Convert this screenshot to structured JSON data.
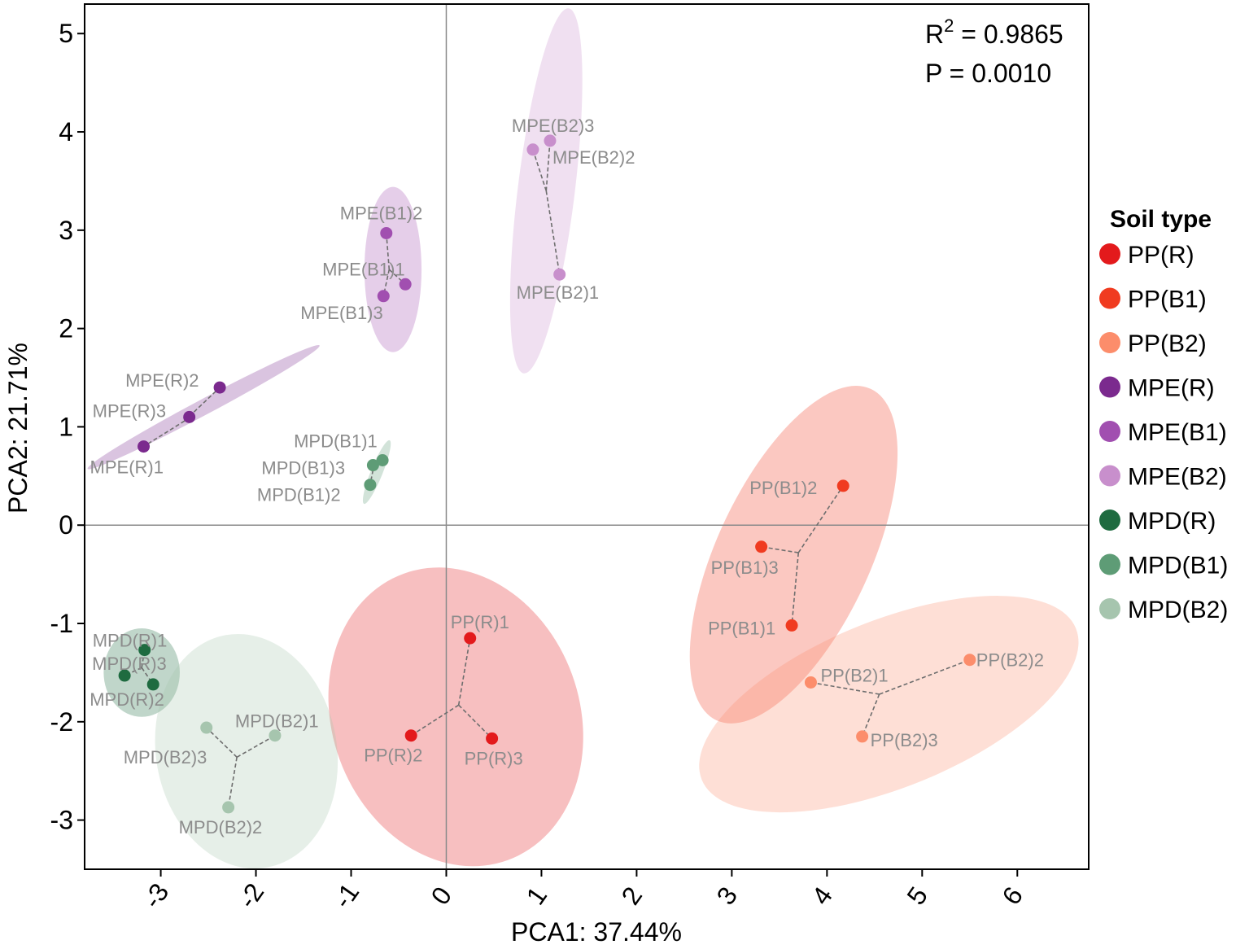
{
  "chart_data": {
    "type": "scatter",
    "xlabel": "PCA1: 37.44%",
    "ylabel": "PCA2: 21.71%",
    "xlim": [
      -3.8,
      6.75
    ],
    "ylim": [
      -3.5,
      5.3
    ],
    "xticks": [
      -3,
      -2,
      -1,
      0,
      1,
      2,
      3,
      4,
      5,
      6
    ],
    "yticks": [
      -3,
      -2,
      -1,
      0,
      1,
      2,
      3,
      4,
      5
    ],
    "stats": {
      "r2_prefix": "R",
      "r2_exp": "2",
      "r2_value": " = 0.9865",
      "p": "P = 0.0010"
    },
    "legend": {
      "title": "Soil type",
      "position": "right"
    },
    "series": [
      {
        "name": "PP(R)",
        "color": "#e31a1c",
        "ellipse": {
          "cx": 0.1,
          "cy": -1.95,
          "rx": 1.3,
          "ry": 1.55,
          "angle": 20
        },
        "centroid": [
          0.13,
          -1.83
        ],
        "points": [
          {
            "label": "PP(R)1",
            "x": 0.25,
            "y": -1.15
          },
          {
            "label": "PP(R)2",
            "x": -0.37,
            "y": -2.14
          },
          {
            "label": "PP(R)3",
            "x": 0.48,
            "y": -2.17
          }
        ]
      },
      {
        "name": "PP(B1)",
        "color": "#f03b20",
        "ellipse": {
          "cx": 3.65,
          "cy": -0.3,
          "rx": 1.92,
          "ry": 0.78,
          "angle": 65
        },
        "centroid": [
          3.7,
          -0.28
        ],
        "points": [
          {
            "label": "PP(B1)2",
            "x": 4.17,
            "y": 0.4
          },
          {
            "label": "PP(B1)3",
            "x": 3.31,
            "y": -0.22
          },
          {
            "label": "PP(B1)1",
            "x": 3.63,
            "y": -1.02
          }
        ]
      },
      {
        "name": "PP(B2)",
        "color": "#fc8d6b",
        "ellipse": {
          "cx": 4.65,
          "cy": -1.82,
          "rx": 2.12,
          "ry": 0.85,
          "angle": 22
        },
        "centroid": [
          4.55,
          -1.72
        ],
        "points": [
          {
            "label": "PP(B2)1",
            "x": 3.83,
            "y": -1.6
          },
          {
            "label": "PP(B2)2",
            "x": 5.5,
            "y": -1.37
          },
          {
            "label": "PP(B2)3",
            "x": 4.37,
            "y": -2.15
          }
        ]
      },
      {
        "name": "MPE(R)",
        "color": "#7b2a8e",
        "ellipse": {
          "cx": -2.55,
          "cy": 1.2,
          "rx": 1.38,
          "ry": 0.08,
          "angle": 28
        },
        "centroid": [
          -2.75,
          1.06
        ],
        "points": [
          {
            "label": "MPE(R)2",
            "x": -2.38,
            "y": 1.4
          },
          {
            "label": "MPE(R)3",
            "x": -2.7,
            "y": 1.1
          },
          {
            "label": "MPE(R)1",
            "x": -3.18,
            "y": 0.8
          }
        ]
      },
      {
        "name": "MPE(B1)",
        "color": "#a14fb0",
        "ellipse": {
          "cx": -0.56,
          "cy": 2.6,
          "rx": 0.3,
          "ry": 0.84,
          "angle": 0
        },
        "centroid": [
          -0.6,
          2.6
        ],
        "points": [
          {
            "label": "MPE(B1)2",
            "x": -0.63,
            "y": 2.97
          },
          {
            "label": "MPE(B1)1",
            "x": -0.43,
            "y": 2.45
          },
          {
            "label": "MPE(B1)3",
            "x": -0.66,
            "y": 2.33
          }
        ]
      },
      {
        "name": "MPE(B2)",
        "color": "#c88fcc",
        "ellipse": {
          "cx": 1.05,
          "cy": 3.4,
          "rx": 0.3,
          "ry": 1.87,
          "angle": -7
        },
        "centroid": [
          1.05,
          3.4
        ],
        "points": [
          {
            "label": "MPE(B2)3",
            "x": 0.91,
            "y": 3.82
          },
          {
            "label": "MPE(B2)2",
            "x": 1.09,
            "y": 3.91
          },
          {
            "label": "MPE(B2)1",
            "x": 1.19,
            "y": 2.55
          }
        ]
      },
      {
        "name": "MPD(R)",
        "color": "#1e6b40",
        "ellipse": {
          "cx": -3.2,
          "cy": -1.5,
          "rx": 0.4,
          "ry": 0.45,
          "angle": 0
        },
        "centroid": [
          -3.2,
          -1.45
        ],
        "points": [
          {
            "label": "MPD(R)1",
            "x": -3.17,
            "y": -1.27
          },
          {
            "label": "MPD(R)3",
            "x": -3.38,
            "y": -1.53
          },
          {
            "label": "MPD(R)2",
            "x": -3.08,
            "y": -1.62
          }
        ]
      },
      {
        "name": "MPD(B1)",
        "color": "#5e9c76",
        "ellipse": {
          "cx": -0.73,
          "cy": 0.54,
          "rx": 0.36,
          "ry": 0.06,
          "angle": 68
        },
        "centroid": [
          -0.77,
          0.56
        ],
        "points": [
          {
            "label": "MPD(B1)1",
            "x": -0.67,
            "y": 0.66
          },
          {
            "label": "MPD(B1)3",
            "x": -0.77,
            "y": 0.61
          },
          {
            "label": "MPD(B1)2",
            "x": -0.8,
            "y": 0.41
          }
        ]
      },
      {
        "name": "MPD(B2)",
        "color": "#a6c5ae",
        "ellipse": {
          "cx": -2.1,
          "cy": -2.3,
          "rx": 0.95,
          "ry": 1.2,
          "angle": 10
        },
        "centroid": [
          -2.2,
          -2.36
        ],
        "points": [
          {
            "label": "MPD(B2)1",
            "x": -1.8,
            "y": -2.14
          },
          {
            "label": "MPD(B2)3",
            "x": -2.52,
            "y": -2.06
          },
          {
            "label": "MPD(B2)2",
            "x": -2.29,
            "y": -2.87
          }
        ]
      }
    ]
  }
}
